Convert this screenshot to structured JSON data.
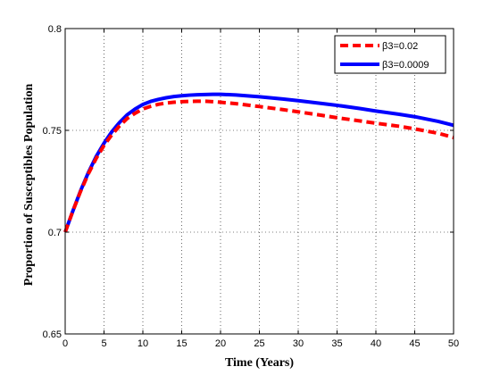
{
  "chart_data": {
    "type": "line",
    "title": "",
    "xlabel": "Time (Years)",
    "ylabel": "Proportion of Susceptibles Population",
    "xlim": [
      0,
      50
    ],
    "ylim": [
      0.65,
      0.8
    ],
    "xticks": [
      0,
      5,
      10,
      15,
      20,
      25,
      30,
      35,
      40,
      45,
      50
    ],
    "yticks": [
      0.65,
      0.7,
      0.75,
      0.8
    ],
    "x_tick_labels": [
      "0",
      "5",
      "10",
      "15",
      "20",
      "25",
      "30",
      "35",
      "40",
      "45",
      "50"
    ],
    "y_tick_labels": [
      "0.65",
      "0.7",
      "0.75",
      "0.8"
    ],
    "grid": true,
    "legend_position": "top-right",
    "series": [
      {
        "name": "β3=0.02",
        "color": "#ff0000",
        "style": "dashed",
        "x": [
          0,
          1,
          2,
          3,
          4,
          5,
          6,
          7,
          8,
          9,
          10,
          11,
          12,
          13,
          14,
          15,
          16,
          17,
          18,
          19,
          20,
          22,
          25,
          28,
          30,
          33,
          35,
          38,
          40,
          43,
          45,
          48,
          50
        ],
        "y": [
          0.7,
          0.7105,
          0.7202,
          0.7288,
          0.7363,
          0.7426,
          0.7478,
          0.7522,
          0.7559,
          0.7584,
          0.7605,
          0.7618,
          0.7628,
          0.7634,
          0.7638,
          0.7641,
          0.7642,
          0.7643,
          0.7643,
          0.7641,
          0.7638,
          0.7631,
          0.7617,
          0.7602,
          0.7591,
          0.7574,
          0.7562,
          0.7546,
          0.7535,
          0.752,
          0.7507,
          0.7486,
          0.7465
        ]
      },
      {
        "name": "β3=0.0009",
        "color": "#0000ff",
        "style": "solid",
        "x": [
          0,
          1,
          2,
          3,
          4,
          5,
          6,
          7,
          8,
          9,
          10,
          11,
          12,
          13,
          14,
          15,
          16,
          17,
          18,
          19,
          20,
          22,
          25,
          28,
          30,
          33,
          35,
          38,
          40,
          43,
          45,
          48,
          50
        ],
        "y": [
          0.7,
          0.7105,
          0.7205,
          0.7294,
          0.7372,
          0.7437,
          0.7493,
          0.7539,
          0.7577,
          0.7605,
          0.7627,
          0.7642,
          0.7652,
          0.766,
          0.7666,
          0.767,
          0.7673,
          0.7675,
          0.7676,
          0.7677,
          0.7677,
          0.7674,
          0.7665,
          0.7654,
          0.7646,
          0.7632,
          0.7623,
          0.7607,
          0.7595,
          0.7579,
          0.7567,
          0.7544,
          0.7525
        ]
      }
    ]
  }
}
